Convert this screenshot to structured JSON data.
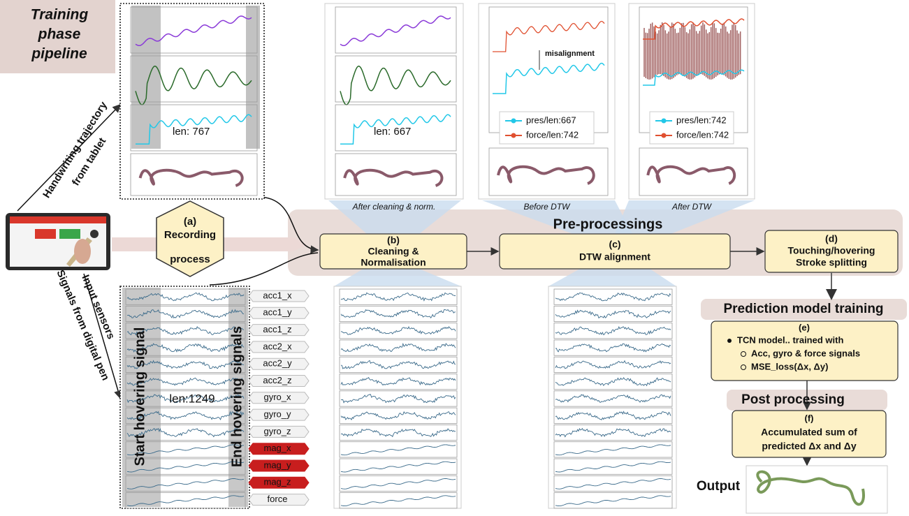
{
  "title": [
    "Training",
    "phase",
    "pipeline"
  ],
  "side_labels": {
    "trajectory": [
      "Handwriting trajectory",
      "from tablet"
    ],
    "sensors": [
      "Input sensors",
      "Signals from digital pen"
    ]
  },
  "recording": {
    "label": "(a)",
    "text": [
      "Recording",
      "process"
    ]
  },
  "plots": [
    {
      "length_label": "len: 767"
    },
    {
      "length_label": "len: 667",
      "caption": "After cleaning & norm."
    },
    {
      "caption": "Before DTW",
      "annotation": "misalignment",
      "legend": [
        "pres/len:667",
        "force/len:742"
      ]
    },
    {
      "caption": "After DTW",
      "legend": [
        "pres/len:742",
        "force/len:742"
      ]
    }
  ],
  "signals": {
    "length_label": "len:1249",
    "start": "Start hovering signal",
    "end": "End hovering signals",
    "channels": [
      "acc1_x",
      "acc1_y",
      "acc1_z",
      "acc2_x",
      "acc2_y",
      "acc2_z",
      "gyro_x",
      "gyro_y",
      "gyro_z",
      "mag_x",
      "mag_y",
      "mag_z",
      "force"
    ]
  },
  "preprocessing": {
    "title": "Pre-processings",
    "steps": [
      {
        "label": "(b)",
        "text": [
          "Cleaning &",
          "Normalisation"
        ]
      },
      {
        "label": "(c)",
        "text": [
          "DTW alignment"
        ]
      },
      {
        "label": "(d)",
        "text": [
          "Touching/hovering",
          "Stroke splitting"
        ]
      }
    ]
  },
  "training": {
    "title": "Prediction model training",
    "label": "(e)",
    "bullet": "TCN model.. trained with",
    "sub_bullets": [
      "Acc, gyro & force signals",
      "MSE_loss(Δx, Δy)"
    ]
  },
  "post": {
    "title": "Post processing",
    "label": "(f)",
    "text": [
      "Accumulated sum of",
      "predicted Δx and Δy"
    ]
  },
  "output": "Output"
}
